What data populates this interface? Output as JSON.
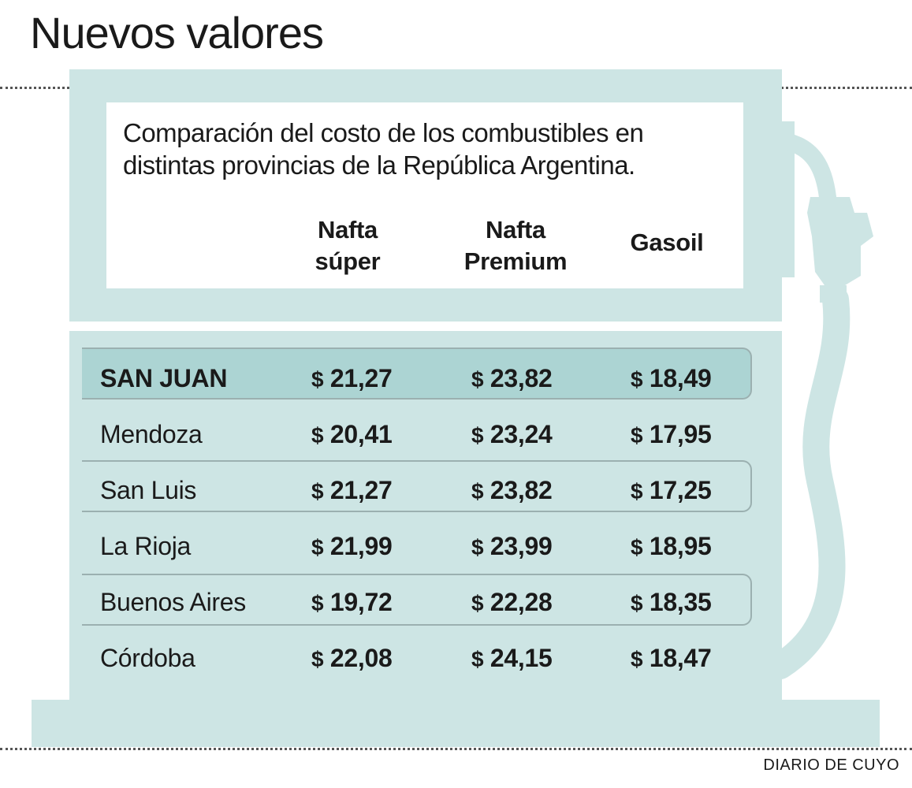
{
  "title": "Nuevos valores",
  "subtitle": "Comparación del costo de los combustibles en distintas provincias de la República Argentina.",
  "columns": [
    {
      "lines": [
        "Nafta",
        "súper"
      ]
    },
    {
      "lines": [
        "Nafta",
        "Premium"
      ]
    },
    {
      "lines": [
        "Gasoil"
      ]
    }
  ],
  "currency": "$",
  "rows": [
    {
      "province": "SAN JUAN",
      "values": [
        "21,27",
        "23,82",
        "18,49"
      ]
    },
    {
      "province": "Mendoza",
      "values": [
        "20,41",
        "23,24",
        "17,95"
      ]
    },
    {
      "province": "San Luis",
      "values": [
        "21,27",
        "23,82",
        "17,25"
      ]
    },
    {
      "province": "La Rioja",
      "values": [
        "21,99",
        "23,99",
        "18,95"
      ]
    },
    {
      "province": "Buenos Aires",
      "values": [
        "19,72",
        "22,28",
        "18,35"
      ]
    },
    {
      "province": "Córdoba",
      "values": [
        "22,08",
        "24,15",
        "18,47"
      ]
    }
  ],
  "credit": "DIARIO DE CUYO",
  "colors": {
    "pump": "#cde5e4",
    "highlight_row": "#acd4d3",
    "frame": "#9bb0b0"
  },
  "chart_data": {
    "type": "table",
    "title": "Nuevos valores",
    "subtitle": "Comparación del costo de los combustibles en distintas provincias de la República Argentina.",
    "columns": [
      "Nafta súper",
      "Nafta Premium",
      "Gasoil"
    ],
    "categories": [
      "SAN JUAN",
      "Mendoza",
      "San Luis",
      "La Rioja",
      "Buenos Aires",
      "Córdoba"
    ],
    "series": [
      {
        "name": "Nafta súper",
        "values": [
          21.27,
          20.41,
          21.27,
          21.99,
          19.72,
          22.08
        ]
      },
      {
        "name": "Nafta Premium",
        "values": [
          23.82,
          23.24,
          23.82,
          23.99,
          22.28,
          24.15
        ]
      },
      {
        "name": "Gasoil",
        "values": [
          18.49,
          17.95,
          17.25,
          18.95,
          18.35,
          18.47
        ]
      }
    ]
  }
}
